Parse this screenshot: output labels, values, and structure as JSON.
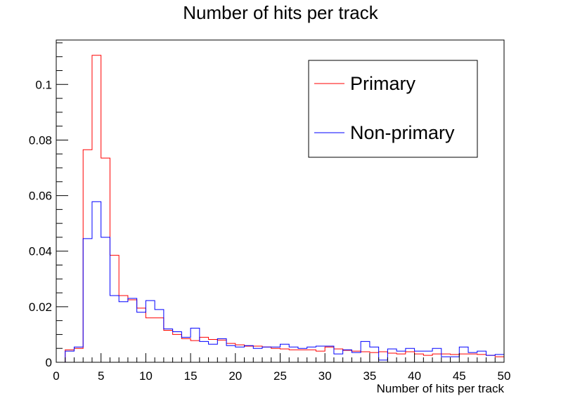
{
  "chart_data": {
    "type": "histogram",
    "title": "Number of hits per track",
    "xlabel": "Number of hits per track",
    "ylabel": "",
    "xlim": [
      0,
      50
    ],
    "ylim": [
      0,
      0.116
    ],
    "bin_width": 1,
    "x_ticks": [
      "0",
      "5",
      "10",
      "15",
      "20",
      "25",
      "30",
      "35",
      "40",
      "45",
      "50"
    ],
    "y_ticks": [
      "0",
      "0.02",
      "0.04",
      "0.06",
      "0.08",
      "0.1"
    ],
    "legend": {
      "position": "top-right"
    },
    "series": [
      {
        "name": "Primary",
        "color": "#ff0000",
        "values": [
          0,
          0.0045,
          0.005,
          0.0765,
          0.1105,
          0.0735,
          0.0385,
          0.024,
          0.0225,
          0.0195,
          0.016,
          0.016,
          0.0115,
          0.01,
          0.0085,
          0.0078,
          0.009,
          0.0082,
          0.008,
          0.0068,
          0.0063,
          0.0058,
          0.0058,
          0.0055,
          0.005,
          0.0048,
          0.0045,
          0.0045,
          0.0045,
          0.004,
          0.0055,
          0.0048,
          0.0043,
          0.004,
          0.0038,
          0.0035,
          0.0038,
          0.0033,
          0.003,
          0.0038,
          0.003,
          0.0025,
          0.003,
          0.003,
          0.0028,
          0.003,
          0.003,
          0.0028,
          0.0025,
          0.002
        ]
      },
      {
        "name": "Non-primary",
        "color": "#0000ff",
        "values": [
          0,
          0.004,
          0.0055,
          0.0445,
          0.0578,
          0.045,
          0.024,
          0.0218,
          0.023,
          0.018,
          0.0222,
          0.019,
          0.012,
          0.011,
          0.009,
          0.0123,
          0.0075,
          0.0065,
          0.0085,
          0.006,
          0.0055,
          0.006,
          0.005,
          0.0055,
          0.0055,
          0.0065,
          0.0055,
          0.005,
          0.0055,
          0.0058,
          0.0058,
          0.003,
          0.0045,
          0.0035,
          0.0075,
          0.0055,
          0.0008,
          0.0048,
          0.004,
          0.005,
          0.004,
          0.004,
          0.005,
          0.002,
          0.002,
          0.0055,
          0.0035,
          0.004,
          0.0025,
          0.0028
        ]
      }
    ]
  }
}
